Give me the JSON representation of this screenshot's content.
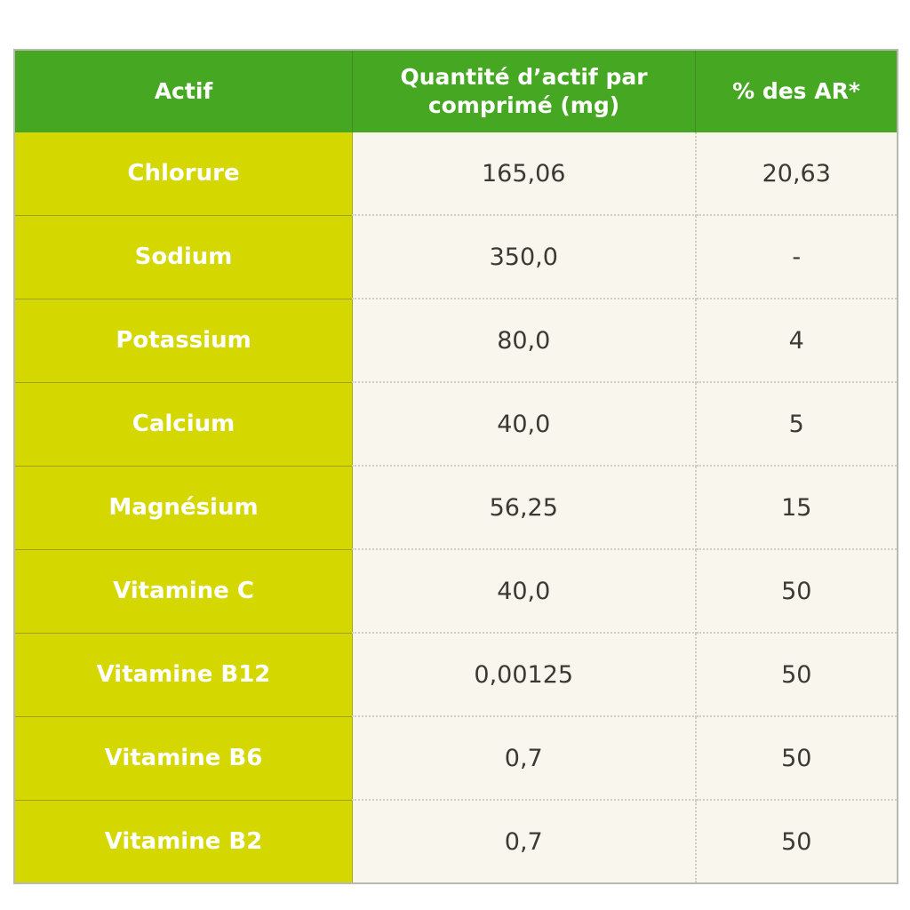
{
  "headers": {
    "actif": "Actif",
    "quantite": "Quantité d’actif par comprimé (mg)",
    "ar": "% des AR*"
  },
  "rows": [
    {
      "actif": "Chlorure",
      "quantite": "165,06",
      "ar": "20,63"
    },
    {
      "actif": "Sodium",
      "quantite": "350,0",
      "ar": "-"
    },
    {
      "actif": "Potassium",
      "quantite": "80,0",
      "ar": "4"
    },
    {
      "actif": "Calcium",
      "quantite": "40,0",
      "ar": "5"
    },
    {
      "actif": "Magnésium",
      "quantite": "56,25",
      "ar": "15"
    },
    {
      "actif": "Vitamine C",
      "quantite": "40,0",
      "ar": "50"
    },
    {
      "actif": "Vitamine B12",
      "quantite": "0,00125",
      "ar": "50"
    },
    {
      "actif": "Vitamine B6",
      "quantite": "0,7",
      "ar": "50"
    },
    {
      "actif": "Vitamine B2",
      "quantite": "0,7",
      "ar": "50"
    }
  ],
  "colors": {
    "header": "#46a822",
    "first_column": "#d4d800",
    "body": "#f9f6ee"
  }
}
